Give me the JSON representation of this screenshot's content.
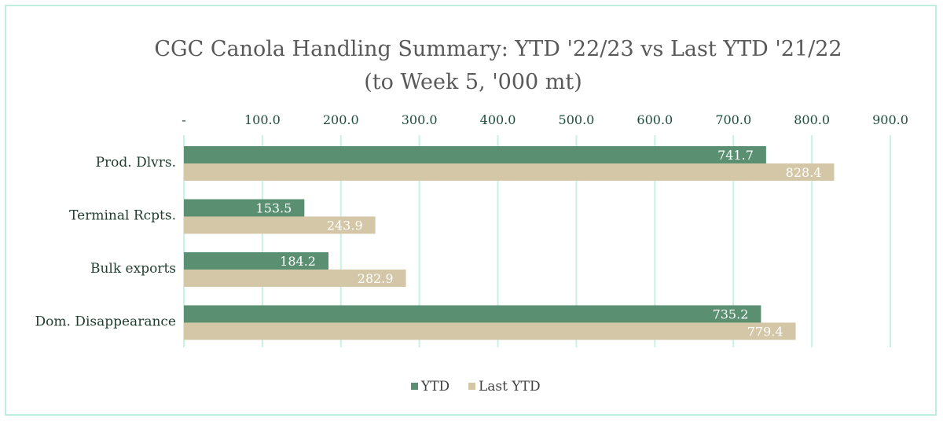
{
  "chart_data": {
    "type": "bar",
    "orientation": "horizontal",
    "title": "CGC Canola Handling Summary: YTD '22/23 vs Last YTD '21/22",
    "subtitle": "(to Week 5, '000 mt)",
    "categories": [
      "Prod. Dlvrs.",
      "Terminal Rcpts.",
      "Bulk exports",
      "Dom. Disappearance"
    ],
    "series": [
      {
        "name": "YTD",
        "values": [
          741.7,
          153.5,
          184.2,
          735.2
        ],
        "labels": [
          "741.7",
          "153.5",
          "184.2",
          "735.2"
        ],
        "color": "#5a9071"
      },
      {
        "name": "Last YTD",
        "values": [
          828.4,
          243.9,
          282.9,
          779.4
        ],
        "labels": [
          "828.4",
          "243.9",
          "282.9",
          "779.4"
        ],
        "color": "#d3c7a8"
      }
    ],
    "xlim": [
      0,
      900
    ],
    "xticks": [
      0,
      100,
      200,
      300,
      400,
      500,
      600,
      700,
      800,
      900
    ],
    "xtick_labels": [
      "-",
      "100.0",
      "200.0",
      "300.0",
      "400.0",
      "500.0",
      "600.0",
      "700.0",
      "800.0",
      "900.0"
    ],
    "xaxis_position": "top",
    "grid": true,
    "grid_color": "#c8f2e4",
    "legend_position": "bottom",
    "data_label_color": "#ffffff"
  }
}
